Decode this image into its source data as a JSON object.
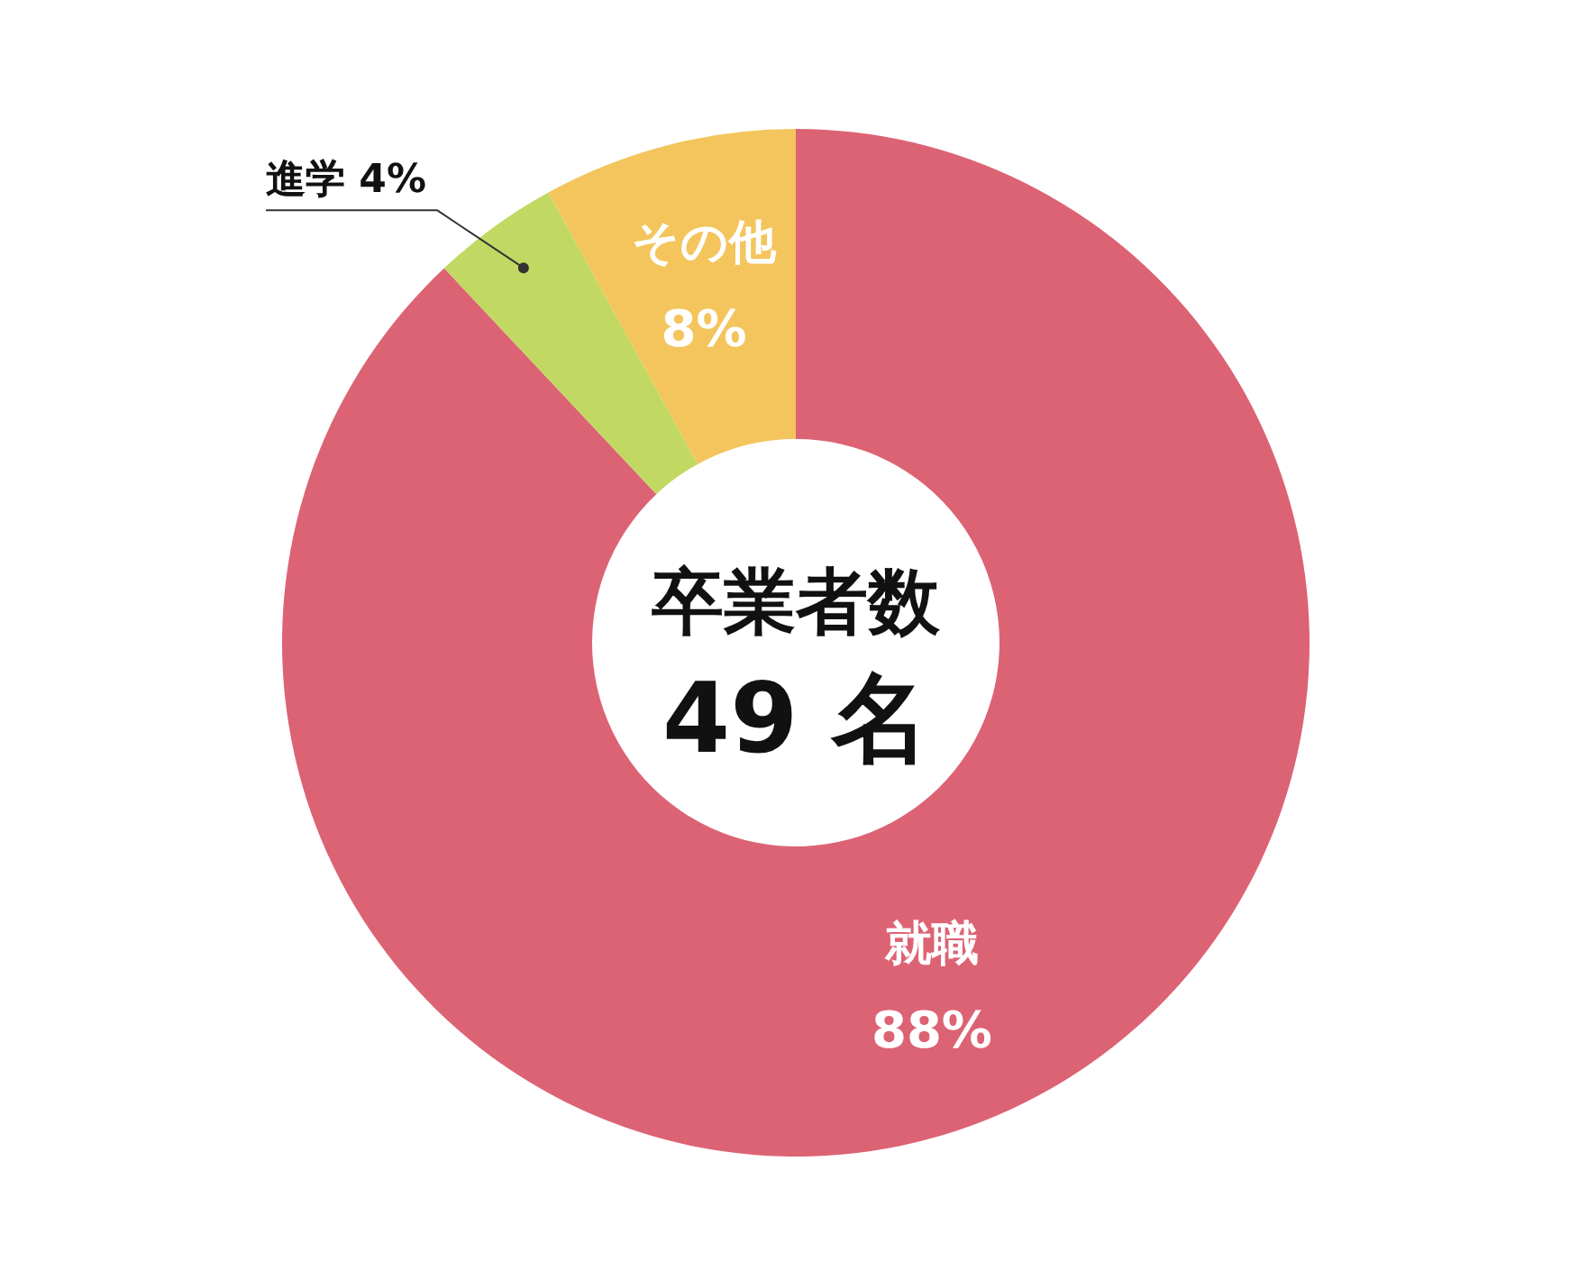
{
  "chart_data": {
    "type": "donut",
    "categories": [
      "就職",
      "進学",
      "その他"
    ],
    "values": [
      88,
      4,
      8
    ],
    "colors": [
      "#dc6374",
      "#c1d962",
      "#f3c55c"
    ],
    "value_labels": [
      "88%",
      "4%",
      "8%"
    ],
    "annotations": [
      "卒業者数",
      "49 名"
    ]
  }
}
